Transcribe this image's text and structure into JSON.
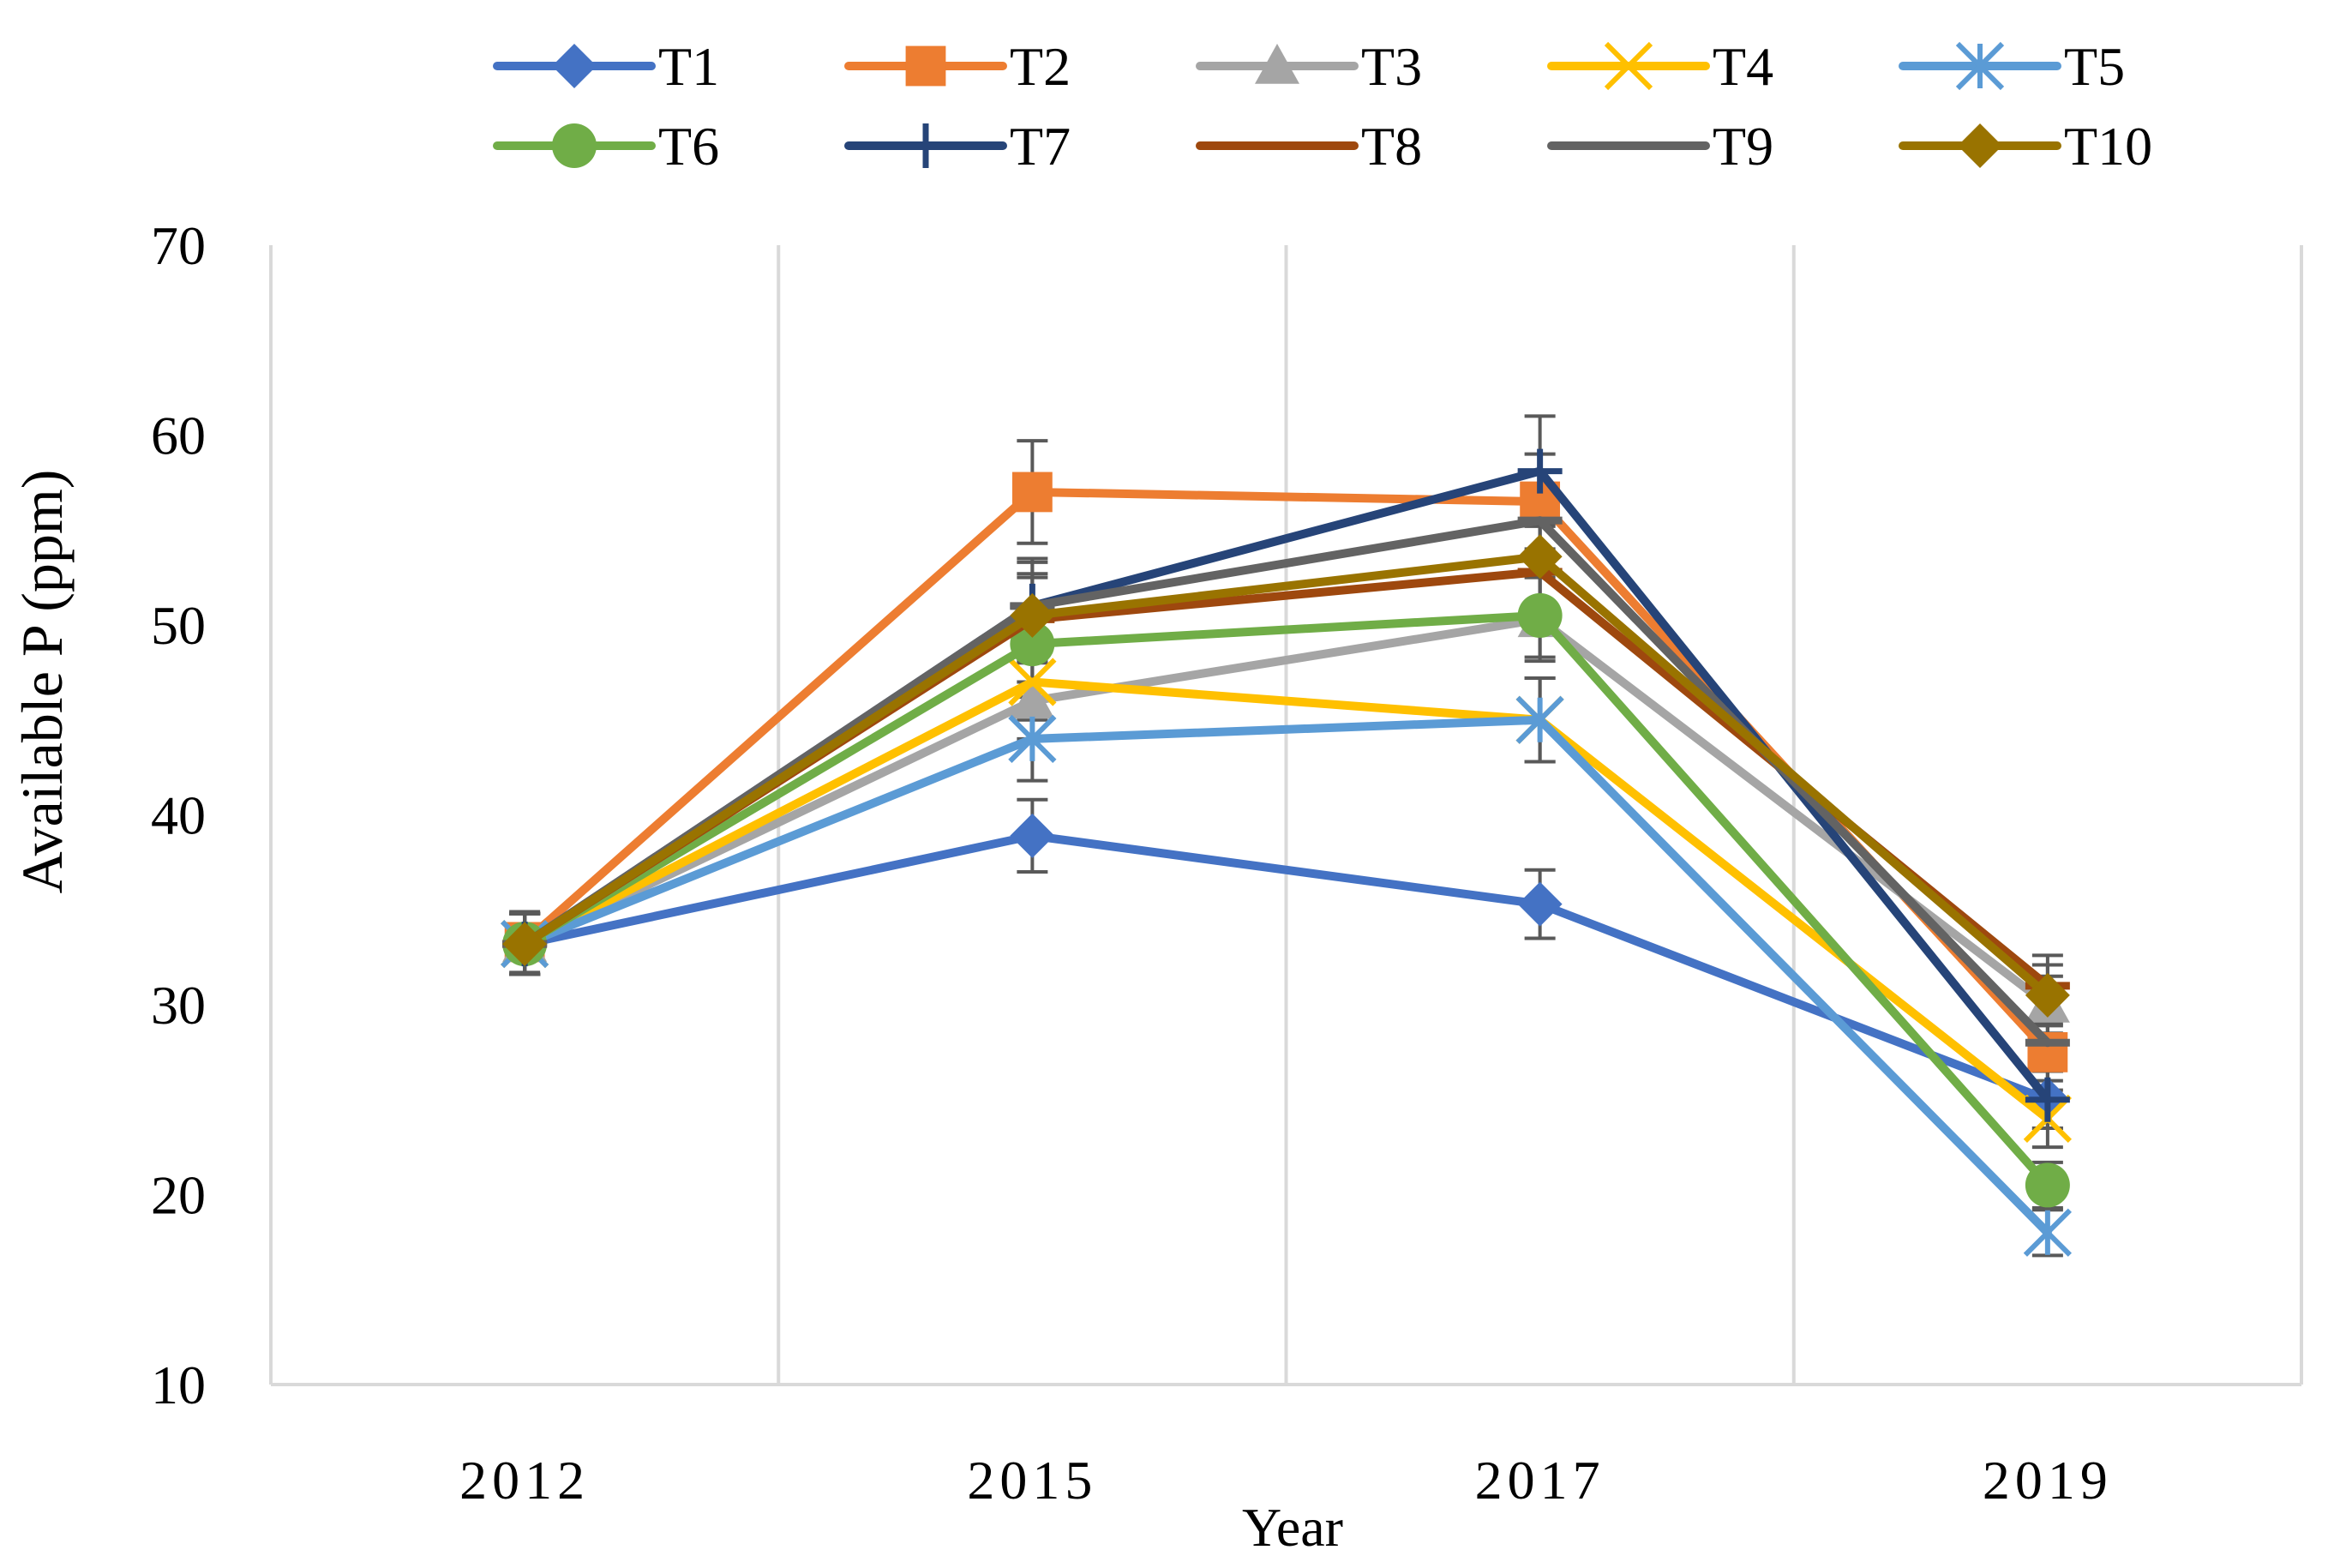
{
  "chart_data": {
    "type": "line",
    "title": "",
    "xlabel": "Year",
    "ylabel": "Available P (ppm)",
    "categories": [
      "2012",
      "2015",
      "2017",
      "2019"
    ],
    "ylim": [
      10,
      70
    ],
    "yticks": [
      10,
      20,
      30,
      40,
      50,
      60,
      70
    ],
    "grid": "vertical",
    "legend_position": "top",
    "series": [
      {
        "name": "T1",
        "color": "#4472C4",
        "marker": "diamond",
        "values": [
          33.2,
          38.9,
          35.3,
          25.0
        ],
        "errors": [
          1.6,
          1.9,
          1.8,
          1.5
        ]
      },
      {
        "name": "T2",
        "color": "#ED7D31",
        "marker": "square",
        "values": [
          33.3,
          57.0,
          56.5,
          27.5
        ],
        "errors": [
          1.6,
          2.7,
          2.5,
          1.5
        ]
      },
      {
        "name": "T3",
        "color": "#A5A5A5",
        "marker": "triangle",
        "values": [
          33.2,
          46.0,
          50.3,
          30.0
        ],
        "errors": [
          1.6,
          2.0,
          2.2,
          1.5
        ]
      },
      {
        "name": "T4",
        "color": "#FFC000",
        "marker": "x",
        "values": [
          33.2,
          47.0,
          45.0,
          24.0
        ],
        "errors": [
          1.6,
          2.0,
          2.2,
          1.5
        ]
      },
      {
        "name": "T5",
        "color": "#5B9BD5",
        "marker": "star",
        "values": [
          33.2,
          44.0,
          45.0,
          18.0
        ],
        "errors": [
          1.6,
          2.2,
          2.2,
          1.2
        ]
      },
      {
        "name": "T6",
        "color": "#70AD47",
        "marker": "circle",
        "values": [
          33.2,
          49.0,
          50.5,
          20.5
        ],
        "errors": [
          1.6,
          2.0,
          2.2,
          1.2
        ]
      },
      {
        "name": "T7",
        "color": "#264478",
        "marker": "plus",
        "values": [
          33.2,
          51.0,
          58.1,
          25.0
        ],
        "errors": [
          1.6,
          2.5,
          2.9,
          1.5
        ]
      },
      {
        "name": "T8",
        "color": "#9E480E",
        "marker": "dash",
        "values": [
          33.2,
          50.3,
          52.8,
          31.0
        ],
        "errors": [
          1.6,
          2.2,
          2.5,
          1.6
        ]
      },
      {
        "name": "T9",
        "color": "#636363",
        "marker": "dash",
        "values": [
          33.2,
          51.0,
          55.5,
          28.0
        ],
        "errors": [
          1.6,
          2.3,
          2.6,
          1.5
        ]
      },
      {
        "name": "T10",
        "color": "#997300",
        "marker": "diamond",
        "values": [
          33.2,
          50.5,
          53.6,
          30.5
        ],
        "errors": [
          1.6,
          2.2,
          2.5,
          1.6
        ]
      }
    ]
  }
}
